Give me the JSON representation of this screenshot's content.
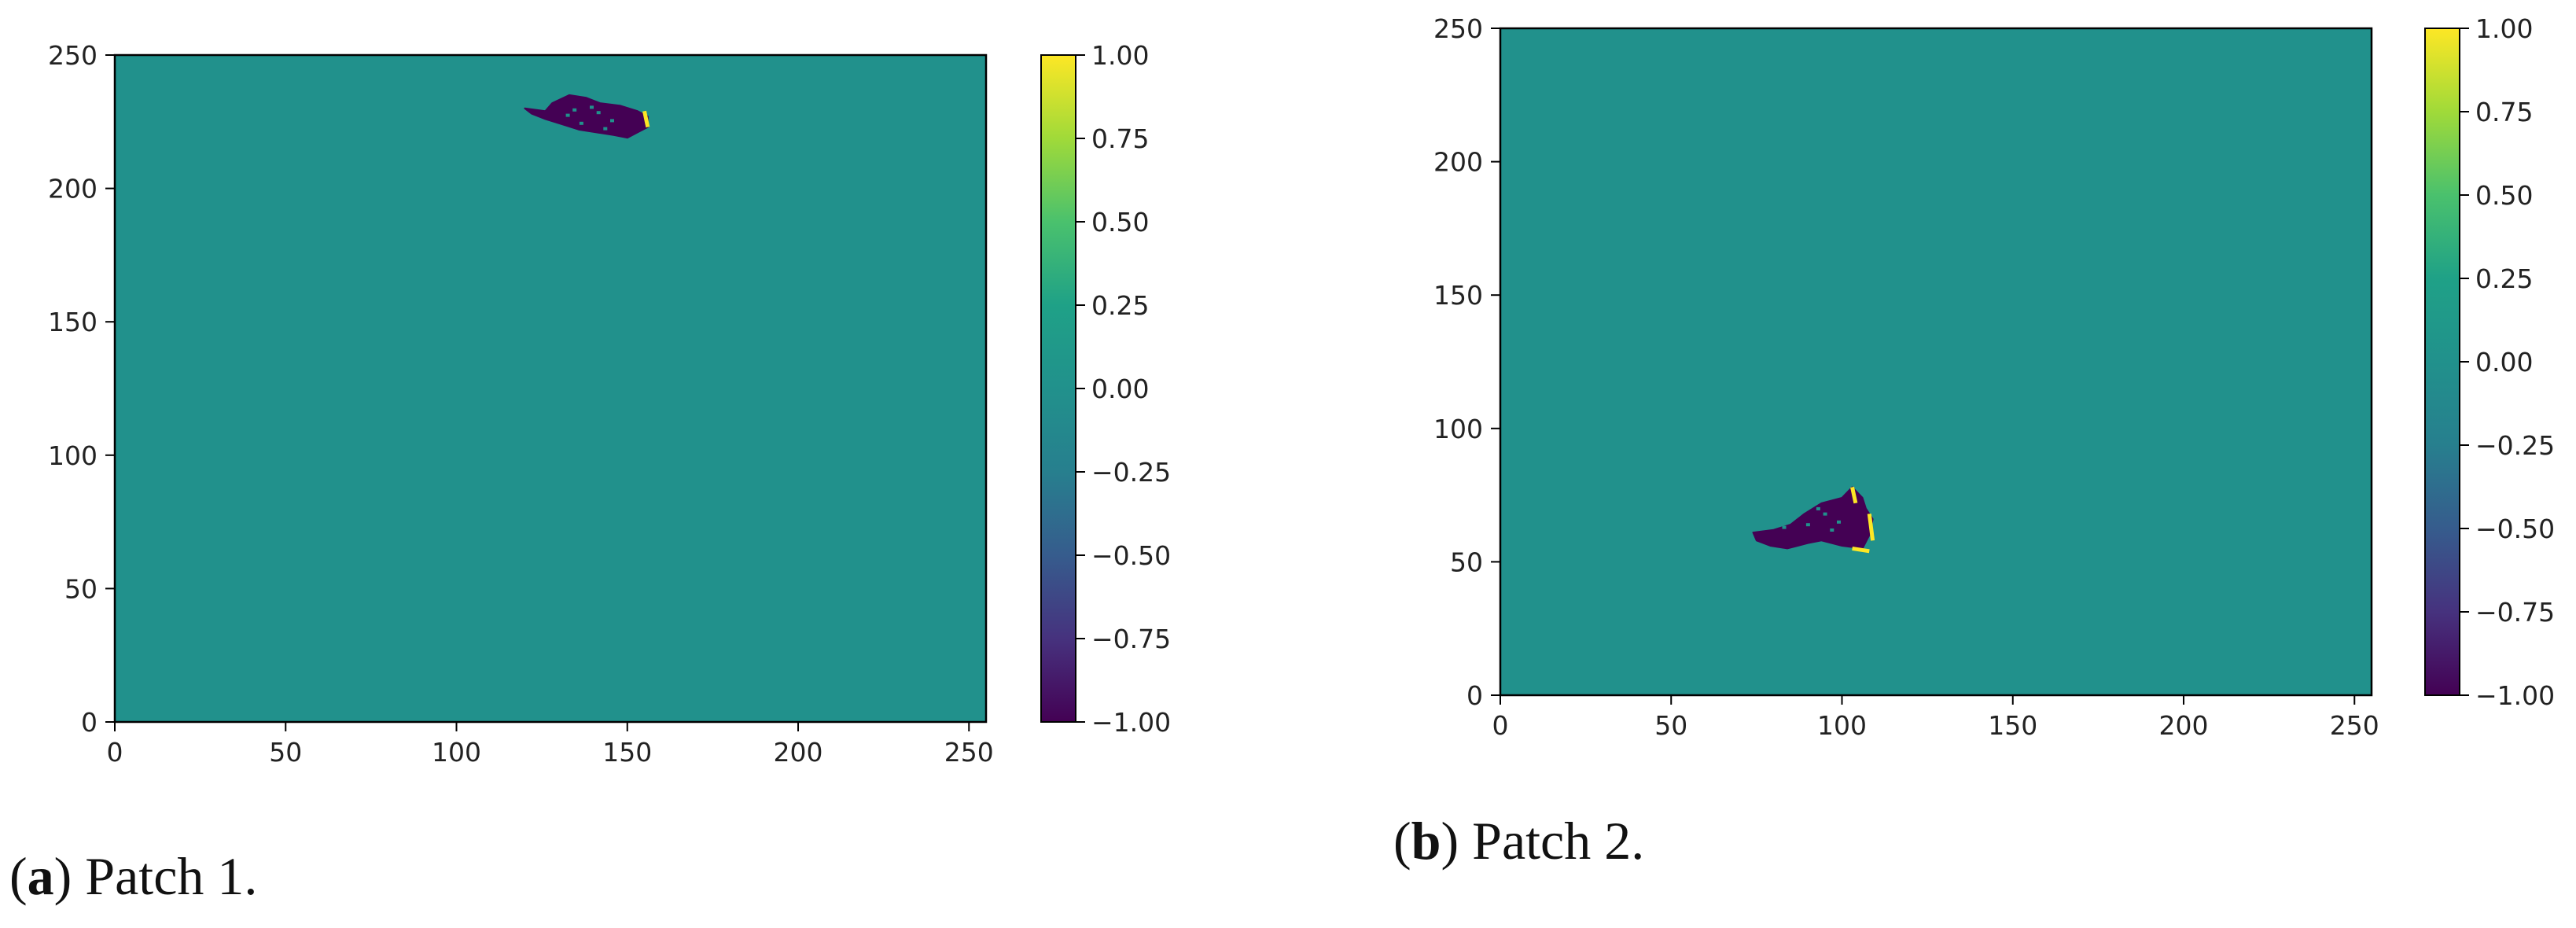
{
  "chart_data": [
    {
      "type": "heatmap",
      "id": "a",
      "caption": {
        "label": "a",
        "text": ") Patch 1."
      },
      "background_value": 0.0,
      "xlim": [
        0,
        255
      ],
      "ylim": [
        0,
        250
      ],
      "x_ticks": [
        0,
        50,
        100,
        150,
        200,
        250
      ],
      "y_ticks": [
        0,
        50,
        100,
        150,
        200,
        250
      ],
      "colorbar": {
        "colormap": "viridis",
        "range": [
          -1.0,
          1.0
        ],
        "ticks": [
          "1.00",
          "0.75",
          "0.50",
          "0.25",
          "0.00",
          "−0.25",
          "−0.50",
          "−0.75",
          "−1.00"
        ]
      },
      "feature": {
        "outline_value": -1.0,
        "edge_value": 1.0,
        "outline": [
          [
            120,
            230
          ],
          [
            126,
            229
          ],
          [
            128,
            232
          ],
          [
            133,
            235
          ],
          [
            138,
            234
          ],
          [
            142,
            232
          ],
          [
            148,
            231
          ],
          [
            153,
            229
          ],
          [
            156,
            227
          ],
          [
            156,
            223
          ],
          [
            153,
            221
          ],
          [
            150,
            219
          ],
          [
            146,
            220
          ],
          [
            141,
            221
          ],
          [
            136,
            222
          ],
          [
            131,
            224
          ],
          [
            126,
            226
          ],
          [
            122,
            228
          ]
        ],
        "edge_segments": [
          [
            [
              155,
              229
            ],
            [
              156,
              223
            ]
          ]
        ]
      }
    },
    {
      "type": "heatmap",
      "id": "b",
      "caption": {
        "label": "b",
        "text": ") Patch 2."
      },
      "background_value": 0.0,
      "xlim": [
        0,
        255
      ],
      "ylim": [
        0,
        250
      ],
      "x_ticks": [
        0,
        50,
        100,
        150,
        200,
        250
      ],
      "y_ticks": [
        0,
        50,
        100,
        150,
        200,
        250
      ],
      "colorbar": {
        "colormap": "viridis",
        "range": [
          -1.0,
          1.0
        ],
        "ticks": [
          "1.00",
          "0.75",
          "0.50",
          "0.25",
          "0.00",
          "−0.25",
          "−0.50",
          "−0.75",
          "−1.00"
        ]
      },
      "feature": {
        "outline_value": -1.0,
        "edge_value": 1.0,
        "outline": [
          [
            74,
            61
          ],
          [
            80,
            62
          ],
          [
            85,
            64
          ],
          [
            89,
            68
          ],
          [
            94,
            72
          ],
          [
            100,
            74
          ],
          [
            103,
            78
          ],
          [
            106,
            74
          ],
          [
            107,
            70
          ],
          [
            109,
            66
          ],
          [
            108,
            60
          ],
          [
            106,
            55
          ],
          [
            100,
            56
          ],
          [
            94,
            58
          ],
          [
            90,
            57
          ],
          [
            84,
            55
          ],
          [
            79,
            56
          ],
          [
            75,
            58
          ]
        ],
        "edge_segments": [
          [
            [
              103,
              78
            ],
            [
              104,
              72
            ]
          ],
          [
            [
              108,
              68
            ],
            [
              109,
              58
            ]
          ],
          [
            [
              103,
              55
            ],
            [
              108,
              54
            ]
          ]
        ]
      }
    }
  ]
}
